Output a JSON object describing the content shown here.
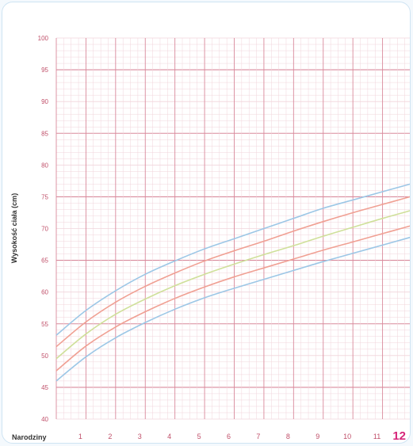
{
  "chart_data": {
    "type": "line",
    "title": "",
    "ylabel": "Wysokość ciała (cm)",
    "xlabel": "",
    "x_tick_labels": [
      "Narodziny",
      "1",
      "2",
      "3",
      "4",
      "5",
      "6",
      "7",
      "8",
      "9",
      "10",
      "11",
      "12"
    ],
    "x": [
      0,
      1,
      2,
      3,
      4,
      5,
      6,
      7,
      8,
      9,
      10,
      11,
      12
    ],
    "xlim": [
      0,
      12
    ],
    "y_ticks": [
      40,
      45,
      50,
      55,
      60,
      65,
      70,
      75,
      80,
      85,
      90,
      95,
      100
    ],
    "ylim": [
      40,
      100
    ],
    "grid": true,
    "series": [
      {
        "color": "#9cc7e6",
        "values": [
          53.2,
          57.1,
          60.2,
          62.8,
          64.9,
          66.8,
          68.4,
          70.0,
          71.6,
          73.2,
          74.5,
          75.8,
          77.1
        ]
      },
      {
        "color": "#f0a093",
        "values": [
          51.4,
          55.3,
          58.4,
          60.9,
          63.0,
          64.9,
          66.5,
          68.0,
          69.6,
          71.1,
          72.5,
          73.8,
          75.1
        ]
      },
      {
        "color": "#cfe09a",
        "values": [
          49.5,
          53.4,
          56.5,
          58.9,
          61.0,
          62.8,
          64.4,
          65.9,
          67.3,
          68.8,
          70.2,
          71.6,
          72.9
        ]
      },
      {
        "color": "#f0a093",
        "values": [
          47.6,
          51.5,
          54.5,
          56.9,
          59.0,
          60.8,
          62.4,
          63.8,
          65.2,
          66.6,
          67.9,
          69.2,
          70.5
        ]
      },
      {
        "color": "#9cc7e6",
        "values": [
          46.0,
          49.8,
          52.8,
          55.2,
          57.3,
          59.1,
          60.6,
          62.0,
          63.4,
          64.8,
          66.1,
          67.4,
          68.7
        ]
      }
    ]
  },
  "colors": {
    "grid_major": "#d98a9c",
    "grid_minor": "#f1d4db",
    "tick_text": "#c0506a",
    "accent": "#d6267a"
  }
}
